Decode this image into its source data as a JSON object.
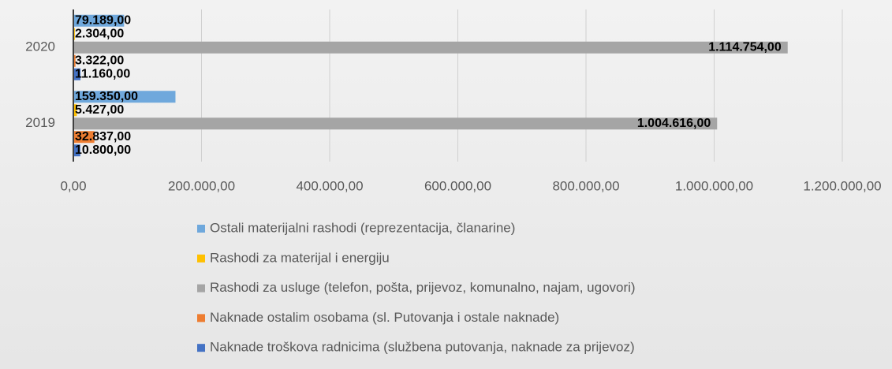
{
  "chart_data": {
    "type": "barh",
    "categories": [
      "2019",
      "2020"
    ],
    "series": [
      {
        "name": "Ostali materijalni rashodi (reprezentacija, članarine)",
        "color": "#6fa8dc",
        "values": [
          159350,
          79189
        ],
        "value_labels": [
          "159.350,00",
          "79.189,00"
        ]
      },
      {
        "name": "Rashodi za materijal i energiju",
        "color": "#ffc000",
        "values": [
          5427,
          2304
        ],
        "value_labels": [
          "5.427,00",
          "2.304,00"
        ]
      },
      {
        "name": "Rashodi za usluge (telefon, pošta, prijevoz, komunalno, najam, ugovori)",
        "color": "#a5a5a5",
        "values": [
          1004616,
          1114754
        ],
        "value_labels": [
          "1.004.616,00",
          "1.114.754,00"
        ]
      },
      {
        "name": "Naknade ostalim osobama (sl. Putovanja i ostale naknade)",
        "color": "#ed7d31",
        "values": [
          32837,
          3322
        ],
        "value_labels": [
          "32.837,00",
          "3.322,00"
        ]
      },
      {
        "name": "Naknade troškova radnicima (službena putovanja, naknade za prijevoz)",
        "color": "#4472c4",
        "values": [
          10800,
          11160
        ],
        "value_labels": [
          "10.800,00",
          "11.160,00"
        ]
      }
    ],
    "xlim": [
      0,
      1200000
    ],
    "xticks": [
      {
        "value": 0,
        "label": "0,00"
      },
      {
        "value": 200000,
        "label": "200.000,00"
      },
      {
        "value": 400000,
        "label": "400.000,00"
      },
      {
        "value": 600000,
        "label": "600.000,00"
      },
      {
        "value": 800000,
        "label": "800.000,00"
      },
      {
        "value": 1000000,
        "label": "1.000.000,00"
      },
      {
        "value": 1200000,
        "label": "1.200.000,00"
      }
    ],
    "grid": true,
    "legend": "bottom"
  }
}
